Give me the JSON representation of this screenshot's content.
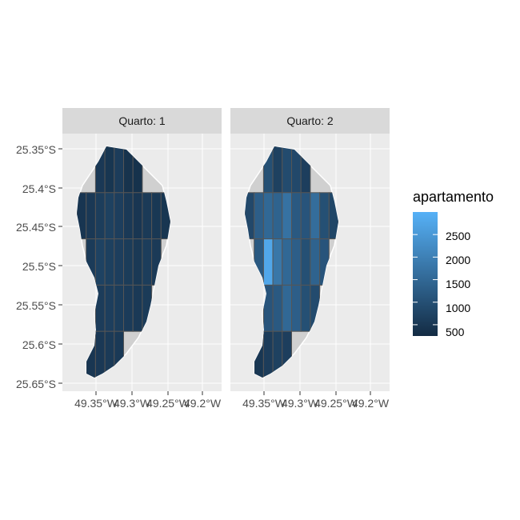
{
  "chart_data": {
    "type": "choropleth map (faceted)",
    "facets": [
      {
        "label": "Quarto: 1",
        "region_values": [
          [
            420,
            380,
            520,
            470,
            600,
            410,
            390,
            450,
            500,
            430
          ],
          [
            460,
            520,
            610,
            700,
            650,
            540,
            480,
            560,
            510,
            470
          ],
          [
            500,
            580,
            720,
            680,
            640,
            590,
            530,
            610,
            560,
            520
          ],
          [
            450,
            530,
            600,
            650,
            620,
            580,
            540,
            570,
            510,
            480
          ],
          [
            430,
            480,
            520,
            560,
            540,
            500,
            470,
            490,
            460,
            440
          ]
        ]
      },
      {
        "label": "Quarto: 2",
        "region_values": [
          [
            600,
            800,
            1000,
            700,
            900,
            850,
            650,
            950,
            1100,
            700
          ],
          [
            850,
            1300,
            1500,
            1400,
            1700,
            1200,
            1100,
            1600,
            1000,
            800
          ],
          [
            900,
            1200,
            2800,
            1800,
            1500,
            1300,
            1000,
            1400,
            1100,
            950
          ],
          [
            700,
            900,
            1100,
            1200,
            1500,
            1300,
            1000,
            900,
            800,
            750
          ],
          [
            400,
            500,
            600,
            700,
            650,
            600,
            550,
            600,
            500,
            450
          ]
        ]
      }
    ],
    "x_ticks": [
      "49.35°W",
      "49.3°W",
      "49.25°W",
      "49.2°W"
    ],
    "y_ticks": [
      "25.35°S",
      "25.4°S",
      "25.45°S",
      "25.5°S",
      "25.55°S",
      "25.6°S",
      "25.65°S"
    ],
    "legend": {
      "title": "apartamento",
      "breaks": [
        "2500",
        "2000",
        "1500",
        "1000",
        "500"
      ],
      "break_values": [
        2500,
        2000,
        1500,
        1000,
        500
      ],
      "min": 250,
      "max": 3000,
      "color_low": "#132B43",
      "color_high": "#56B1F7"
    },
    "no_data_color": "#d0d0d0"
  }
}
